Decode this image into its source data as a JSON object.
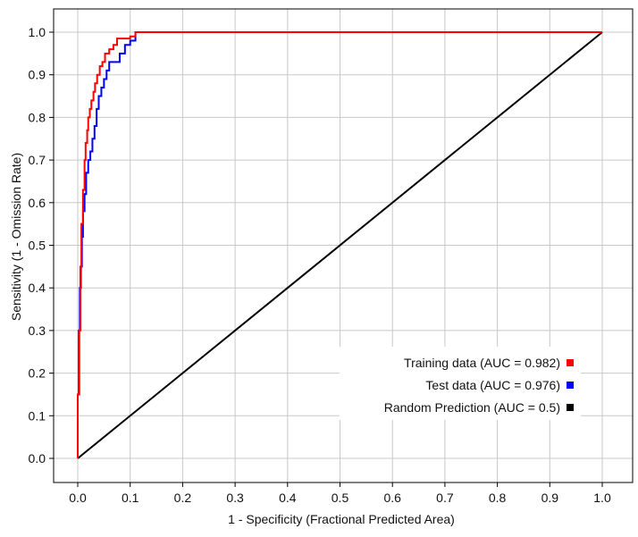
{
  "chart_data": {
    "type": "line",
    "title": "",
    "xlabel": "1 - Specificity  (Fractional Predicted Area)",
    "ylabel": "Sensitivity  (1 - Omission Rate)",
    "xlim": [
      0,
      1
    ],
    "ylim": [
      0,
      1
    ],
    "xticks": [
      0,
      0.1,
      0.2,
      0.3,
      0.4,
      0.5,
      0.6,
      0.7,
      0.8,
      0.9,
      1.0
    ],
    "yticks": [
      0,
      0.1,
      0.2,
      0.3,
      0.4,
      0.5,
      0.6,
      0.7,
      0.8,
      0.9,
      1.0
    ],
    "xtick_labels": [
      "0.0",
      "0.1",
      "0.2",
      "0.3",
      "0.4",
      "0.5",
      "0.6",
      "0.7",
      "0.8",
      "0.9",
      "1.0"
    ],
    "ytick_labels": [
      "0.0",
      "0.1",
      "0.2",
      "0.3",
      "0.4",
      "0.5",
      "0.6",
      "0.7",
      "0.8",
      "0.9",
      "1.0"
    ],
    "grid": true,
    "legend_position": "bottom-right",
    "series": [
      {
        "name": "Training data (AUC = 0.982)",
        "color": "#ff0000",
        "x": [
          0,
          0.003,
          0.005,
          0.007,
          0.01,
          0.013,
          0.015,
          0.018,
          0.02,
          0.023,
          0.026,
          0.03,
          0.033,
          0.037,
          0.042,
          0.047,
          0.052,
          0.06,
          0.068,
          0.075,
          0.085,
          0.1,
          0.11,
          0.12,
          1.0
        ],
        "y": [
          0,
          0.15,
          0.3,
          0.45,
          0.55,
          0.63,
          0.7,
          0.74,
          0.77,
          0.8,
          0.82,
          0.84,
          0.86,
          0.88,
          0.9,
          0.92,
          0.93,
          0.95,
          0.96,
          0.97,
          0.985,
          0.985,
          0.99,
          1.0,
          1.0
        ]
      },
      {
        "name": "Test data (AUC = 0.976)",
        "color": "#0000ff",
        "x": [
          0,
          0.002,
          0.004,
          0.006,
          0.008,
          0.01,
          0.013,
          0.016,
          0.02,
          0.024,
          0.028,
          0.032,
          0.036,
          0.04,
          0.045,
          0.05,
          0.055,
          0.06,
          0.065,
          0.08,
          0.09,
          0.1,
          0.11,
          0.115,
          1.0
        ],
        "y": [
          0,
          0.15,
          0.3,
          0.4,
          0.45,
          0.52,
          0.58,
          0.62,
          0.67,
          0.7,
          0.72,
          0.75,
          0.78,
          0.82,
          0.85,
          0.87,
          0.89,
          0.91,
          0.93,
          0.93,
          0.95,
          0.97,
          0.98,
          1.0,
          1.0
        ]
      },
      {
        "name": "Random Prediction (AUC = 0.5)",
        "color": "#000000",
        "x": [
          0,
          1
        ],
        "y": [
          0,
          1
        ]
      }
    ]
  }
}
